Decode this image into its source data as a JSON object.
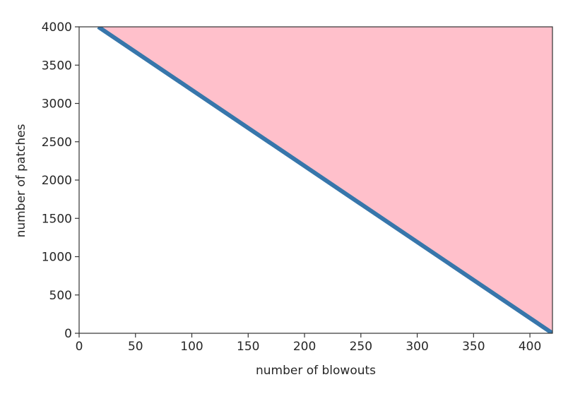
{
  "chart_data": {
    "type": "area",
    "title": "",
    "xlabel": "number of blowouts",
    "ylabel": "number of patches",
    "xlim": [
      0,
      420
    ],
    "ylim": [
      0,
      4000
    ],
    "xticks": [
      0,
      50,
      100,
      150,
      200,
      250,
      300,
      350,
      400
    ],
    "yticks": [
      0,
      500,
      1000,
      1500,
      2000,
      2500,
      3000,
      3500,
      4000
    ],
    "grid": false,
    "series": [
      {
        "type": "line",
        "x": [
          17,
          420
        ],
        "y": [
          4000,
          0
        ]
      }
    ],
    "shaded_region": {
      "x": [
        17,
        420,
        420
      ],
      "y": [
        4000,
        4000,
        0
      ]
    },
    "colors": {
      "line": "#3776ab",
      "fill": "#ffc0cb",
      "axes": "#333333",
      "text": "#262626"
    }
  }
}
